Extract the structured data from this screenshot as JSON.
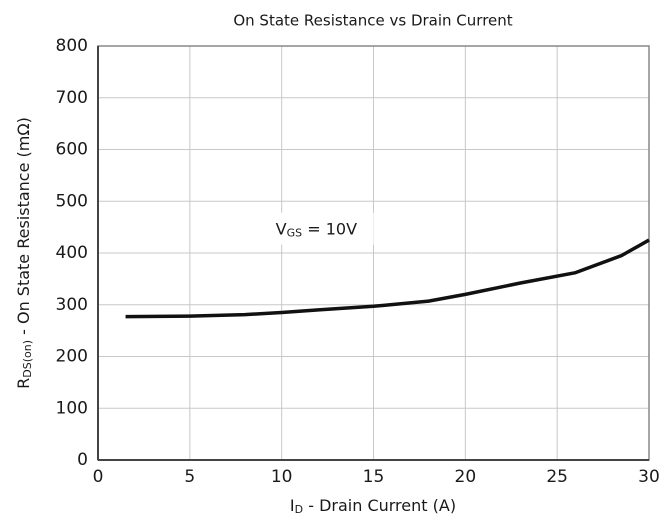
{
  "chart_data": {
    "type": "line",
    "title": "On State Resistance vs Drain Current",
    "xlabel": {
      "main": "I",
      "sub": "D",
      "rest": " - Drain Current (A)"
    },
    "ylabel": {
      "main": "R",
      "sub": "DS(on)",
      "rest": " - On State Resistance (mΩ)"
    },
    "annotation": {
      "main": "V",
      "sub": "GS",
      "rest": " = 10V",
      "x": 10,
      "y": 445
    },
    "x": [
      1.5,
      5,
      8,
      10,
      12,
      15,
      18,
      20,
      23,
      26,
      28.5,
      30
    ],
    "series": [
      {
        "name": "VGS = 10V",
        "color": "#111111",
        "values": [
          277,
          278,
          281,
          285,
          290,
          297,
          307,
          320,
          342,
          362,
          395,
          425
        ]
      }
    ],
    "xlim": [
      0,
      30
    ],
    "xticks": [
      0,
      5,
      10,
      15,
      20,
      25,
      30
    ],
    "ylim": [
      0,
      800
    ],
    "yticks": [
      0,
      100,
      200,
      300,
      400,
      500,
      600,
      700,
      800
    ],
    "grid": true
  }
}
